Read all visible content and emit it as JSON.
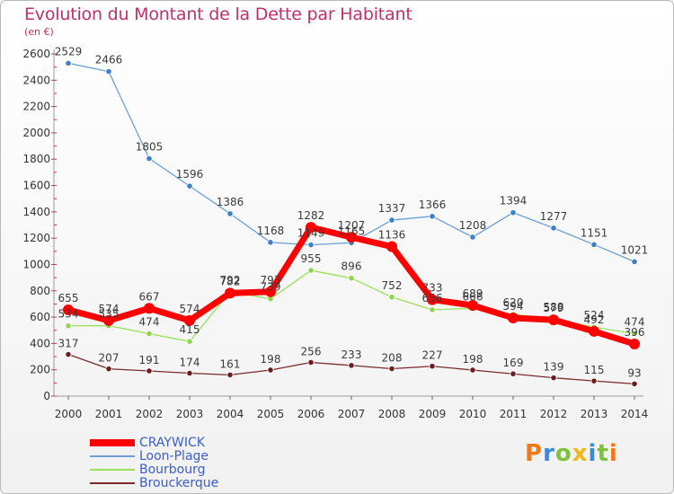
{
  "header": {
    "title": "Evolution du Montant de la Dette par Habitant",
    "subtitle": "(en €)"
  },
  "logo": {
    "letters": [
      "P",
      "r",
      "o",
      "x",
      "i",
      "t",
      "i"
    ],
    "colors": [
      "#f07a1a",
      "#3c8ad6",
      "#7cc23c",
      "#f0b81a",
      "#3c8ad6",
      "#7cc23c",
      "#f07a1a"
    ]
  },
  "chart_data": {
    "type": "line",
    "title": "Evolution du Montant de la Dette par Habitant",
    "subtitle": "(en €)",
    "x": [
      "2000",
      "2001",
      "2002",
      "2003",
      "2004",
      "2005",
      "2006",
      "2007",
      "2008",
      "2009",
      "2010",
      "2011",
      "2012",
      "2013",
      "2014"
    ],
    "ylim": [
      0,
      2600
    ],
    "yticks": [
      0,
      200,
      400,
      600,
      800,
      1000,
      1200,
      1400,
      1600,
      1800,
      2000,
      2200,
      2400,
      2600
    ],
    "grid": false,
    "legend_position": "bottom-left",
    "series": [
      {
        "name": "CRAYWICK",
        "color": "#ff0000",
        "marker": "#ff0000",
        "values": [
          655,
          574,
          667,
          574,
          782,
          793,
          1282,
          1207,
          1136,
          733,
          689,
          594,
          579,
          492,
          396
        ]
      },
      {
        "name": "Loon-Plage",
        "color": "#6b9fd4",
        "marker": "#3d7fc4",
        "values": [
          2529,
          2466,
          1805,
          1596,
          1386,
          1168,
          1149,
          1165,
          1337,
          1366,
          1208,
          1394,
          1277,
          1151,
          1021
        ]
      },
      {
        "name": "Bourbourg",
        "color": "#9be05a",
        "marker": "#8fd24b",
        "values": [
          534,
          535,
          474,
          415,
          792,
          739,
          955,
          896,
          752,
          656,
          666,
          620,
          588,
          524,
          474
        ]
      },
      {
        "name": "Brouckerque",
        "color": "#7a2a2a",
        "marker": "#6a1f1f",
        "values": [
          317,
          207,
          191,
          174,
          161,
          198,
          256,
          233,
          208,
          227,
          198,
          169,
          139,
          115,
          93
        ]
      }
    ]
  }
}
